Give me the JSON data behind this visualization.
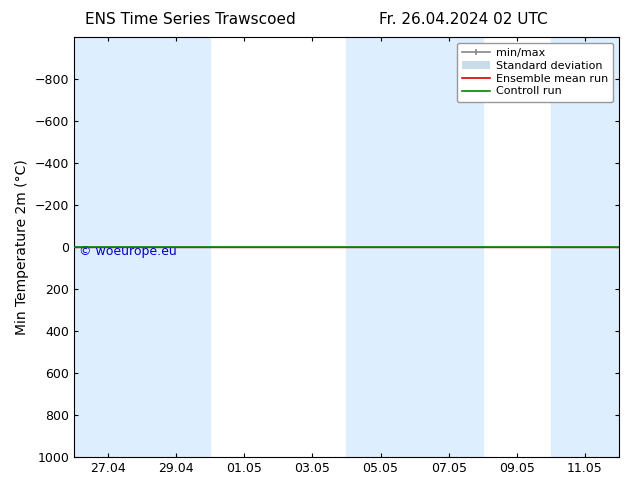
{
  "title_left": "ENS Time Series Trawscoed",
  "title_right": "Fr. 26.04.2024 02 UTC",
  "ylabel": "Min Temperature 2m (°C)",
  "watermark": "© woeurope.eu",
  "ylim_bottom": 1000,
  "ylim_top": -1000,
  "yticks": [
    -800,
    -600,
    -400,
    -200,
    0,
    200,
    400,
    600,
    800,
    1000
  ],
  "x_tick_labels": [
    "27.04",
    "29.04",
    "01.05",
    "03.05",
    "05.05",
    "07.05",
    "09.05",
    "11.05"
  ],
  "x_tick_positions": [
    1,
    3,
    5,
    7,
    9,
    11,
    13,
    15
  ],
  "xlim": [
    0,
    16
  ],
  "blue_band_ranges": [
    [
      0,
      4
    ],
    [
      8,
      12
    ],
    [
      14,
      16
    ]
  ],
  "control_run_y": 0,
  "ensemble_mean_y": 0,
  "shading_color": "#ddeeff",
  "control_run_color": "#008800",
  "ensemble_mean_color": "#dd0000",
  "minmax_color": "#888888",
  "stddev_color": "#c8dcea",
  "background_color": "#ffffff",
  "legend_labels": [
    "min/max",
    "Standard deviation",
    "Ensemble mean run",
    "Controll run"
  ],
  "font_color": "#000000",
  "watermark_color": "#0000cc",
  "title_fontsize": 11,
  "axis_fontsize": 10,
  "tick_fontsize": 9,
  "legend_fontsize": 8,
  "watermark_fontsize": 9
}
